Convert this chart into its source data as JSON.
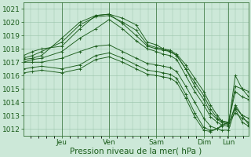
{
  "background_color": "#cce8d8",
  "plot_bg_color": "#cce8d8",
  "grid_color": "#99c4aa",
  "line_color": "#1a5c1a",
  "ylim": [
    1011.5,
    1021.5
  ],
  "yticks": [
    1012,
    1013,
    1014,
    1015,
    1016,
    1017,
    1018,
    1019,
    1020,
    1021
  ],
  "xlabel": "Pression niveau de la mer( hPa )",
  "xlabel_fontsize": 7.5,
  "tick_fontsize": 6.5,
  "day_labels": [
    "Jeu",
    "Ven",
    "Sam",
    "Dim",
    "Lun"
  ],
  "day_positions": [
    0.17,
    0.38,
    0.59,
    0.8,
    0.91
  ],
  "xlim": [
    0,
    1
  ],
  "lines": [
    {
      "x": [
        0.0,
        0.04,
        0.08,
        0.17,
        0.25,
        0.32,
        0.38,
        0.44,
        0.5,
        0.55,
        0.59,
        0.62,
        0.65,
        0.68,
        0.72,
        0.76,
        0.8,
        0.83,
        0.86,
        0.88,
        0.91,
        0.94,
        0.97,
        1.0
      ],
      "y": [
        1017.5,
        1017.8,
        1018.0,
        1018.2,
        1019.5,
        1020.5,
        1020.6,
        1020.3,
        1019.8,
        1018.5,
        1018.3,
        1018.0,
        1017.8,
        1017.5,
        1016.5,
        1015.5,
        1014.5,
        1013.5,
        1012.8,
        1012.6,
        1012.5,
        1013.2,
        1012.8,
        1012.5
      ]
    },
    {
      "x": [
        0.0,
        0.04,
        0.08,
        0.17,
        0.25,
        0.32,
        0.38,
        0.44,
        0.5,
        0.55,
        0.59,
        0.62,
        0.65,
        0.68,
        0.72,
        0.76,
        0.8,
        0.83,
        0.86,
        0.88,
        0.91,
        0.94,
        0.97,
        1.0
      ],
      "y": [
        1017.3,
        1017.5,
        1017.8,
        1018.5,
        1019.8,
        1020.4,
        1020.5,
        1020.0,
        1019.4,
        1018.3,
        1018.1,
        1018.0,
        1017.9,
        1017.6,
        1016.8,
        1015.8,
        1014.8,
        1013.8,
        1013.0,
        1012.6,
        1012.4,
        1013.6,
        1013.0,
        1012.3
      ]
    },
    {
      "x": [
        0.0,
        0.04,
        0.08,
        0.17,
        0.25,
        0.32,
        0.38,
        0.44,
        0.5,
        0.55,
        0.59,
        0.62,
        0.65,
        0.68,
        0.72,
        0.76,
        0.8,
        0.83,
        0.86,
        0.88,
        0.91,
        0.94,
        0.97,
        1.0
      ],
      "y": [
        1017.2,
        1017.3,
        1017.5,
        1018.8,
        1020.0,
        1020.5,
        1020.6,
        1019.9,
        1019.0,
        1018.2,
        1018.0,
        1017.9,
        1017.8,
        1017.5,
        1016.5,
        1015.2,
        1014.2,
        1013.2,
        1012.7,
        1012.5,
        1012.3,
        1016.0,
        1015.0,
        1014.4
      ]
    },
    {
      "x": [
        0.0,
        0.04,
        0.08,
        0.17,
        0.25,
        0.32,
        0.38,
        0.44,
        0.5,
        0.55,
        0.59,
        0.62,
        0.65,
        0.68,
        0.72,
        0.76,
        0.8,
        0.83,
        0.86,
        0.88,
        0.91,
        0.94,
        0.97,
        1.0
      ],
      "y": [
        1017.0,
        1017.2,
        1017.3,
        1017.8,
        1018.8,
        1019.5,
        1020.2,
        1019.5,
        1018.6,
        1018.0,
        1017.8,
        1017.6,
        1017.5,
        1017.2,
        1016.0,
        1014.8,
        1013.8,
        1012.9,
        1012.5,
        1012.3,
        1012.2,
        1013.8,
        1013.0,
        1012.8
      ]
    },
    {
      "x": [
        0.0,
        0.04,
        0.08,
        0.17,
        0.25,
        0.32,
        0.38,
        0.44,
        0.5,
        0.55,
        0.59,
        0.62,
        0.65,
        0.68,
        0.72,
        0.76,
        0.8,
        0.83,
        0.86,
        0.88,
        0.91,
        0.94,
        0.97,
        1.0
      ],
      "y": [
        1017.0,
        1017.0,
        1017.0,
        1017.3,
        1017.8,
        1018.2,
        1018.3,
        1017.8,
        1017.3,
        1016.9,
        1016.8,
        1016.7,
        1016.6,
        1016.3,
        1015.2,
        1014.0,
        1012.8,
        1012.2,
        1012.0,
        1011.9,
        1011.9,
        1013.5,
        1012.5,
        1012.2
      ]
    },
    {
      "x": [
        0.0,
        0.04,
        0.08,
        0.17,
        0.25,
        0.32,
        0.38,
        0.44,
        0.5,
        0.55,
        0.59,
        0.62,
        0.65,
        0.68,
        0.72,
        0.76,
        0.8,
        0.83,
        0.86,
        0.88,
        0.91,
        0.94,
        0.97,
        1.0
      ],
      "y": [
        1016.5,
        1016.6,
        1016.7,
        1016.5,
        1016.8,
        1017.5,
        1017.7,
        1017.3,
        1016.8,
        1016.4,
        1016.3,
        1016.2,
        1016.1,
        1015.8,
        1014.6,
        1013.2,
        1012.1,
        1011.9,
        1012.0,
        1012.2,
        1012.5,
        1014.8,
        1014.4,
        1014.2
      ]
    },
    {
      "x": [
        0.0,
        0.04,
        0.08,
        0.17,
        0.25,
        0.32,
        0.38,
        0.44,
        0.5,
        0.55,
        0.59,
        0.62,
        0.65,
        0.68,
        0.72,
        0.76,
        0.8,
        0.83,
        0.86,
        0.88,
        0.91,
        0.94,
        0.97,
        1.0
      ],
      "y": [
        1016.2,
        1016.3,
        1016.4,
        1016.2,
        1016.5,
        1017.2,
        1017.4,
        1017.0,
        1016.5,
        1016.1,
        1016.0,
        1015.9,
        1015.8,
        1015.5,
        1014.3,
        1012.9,
        1011.9,
        1011.8,
        1012.0,
        1012.3,
        1012.5,
        1015.2,
        1015.0,
        1014.8
      ]
    }
  ]
}
